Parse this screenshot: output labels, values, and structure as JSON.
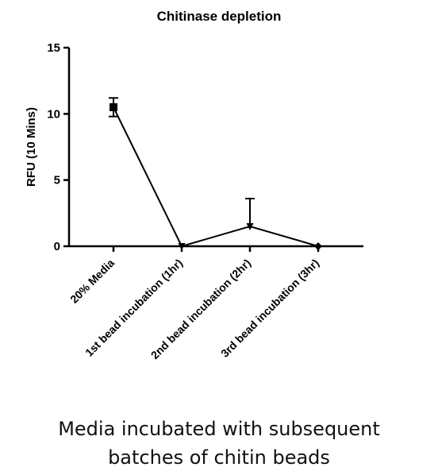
{
  "chart_data": {
    "type": "line",
    "title": "Chitinase depletion",
    "ylabel": "RFU (10 Mins)",
    "xlabel": "",
    "categories": [
      "20% Media",
      "1st bead incubation (1hr)",
      "2nd bead incubation (2hr)",
      "3rd bead incubation (3hr)"
    ],
    "values": [
      10.5,
      0.0,
      1.5,
      0.0
    ],
    "error_upper": [
      0.7,
      0.0,
      2.1,
      0.0
    ],
    "error_lower": [
      0.7,
      0.0,
      0.0,
      0.0
    ],
    "markers": [
      "square",
      "triangle-down",
      "triangle-down",
      "diamond"
    ],
    "ylim": [
      0,
      15
    ],
    "yticks": [
      0,
      5,
      10,
      15
    ],
    "grid": false,
    "line_color": "#000000"
  },
  "caption": {
    "line1": "Media incubated with subsequent",
    "line2": "batches of chitin beads"
  }
}
